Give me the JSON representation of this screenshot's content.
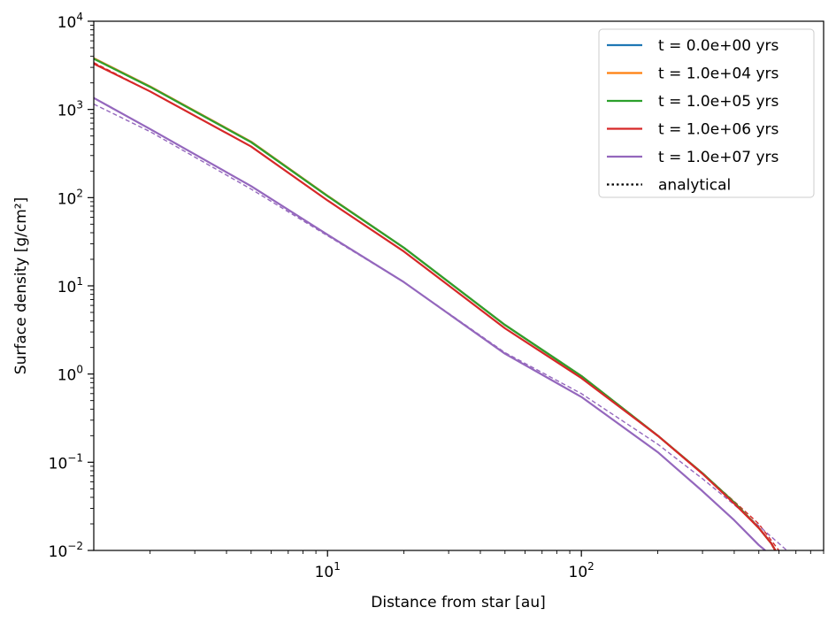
{
  "chart_data": {
    "type": "line",
    "xlabel": "Distance from star [au]",
    "ylabel": "Surface density [g/cm²]",
    "xscale": "log",
    "yscale": "log",
    "xlim": [
      1.2,
      900
    ],
    "ylim": [
      0.01,
      10000
    ],
    "x_ticks": [
      {
        "value": 10,
        "label": "10",
        "exp": "1"
      },
      {
        "value": 100,
        "label": "10",
        "exp": "2"
      }
    ],
    "y_ticks": [
      {
        "value": 0.01,
        "label": "10",
        "exp": "−2"
      },
      {
        "value": 0.1,
        "label": "10",
        "exp": "−1"
      },
      {
        "value": 1,
        "label": "10",
        "exp": "0"
      },
      {
        "value": 10,
        "label": "10",
        "exp": "1"
      },
      {
        "value": 100,
        "label": "10",
        "exp": "2"
      },
      {
        "value": 1000,
        "label": "10",
        "exp": "3"
      },
      {
        "value": 10000,
        "label": "10",
        "exp": "4"
      }
    ],
    "grid": false,
    "legend_position": "top-right",
    "series": [
      {
        "name": "t = 0.0e+00 yrs",
        "color": "#1f77b4",
        "style": "solid",
        "points": [
          [
            1.2,
            3800
          ],
          [
            2,
            1820
          ],
          [
            5,
            430
          ],
          [
            10,
            105
          ],
          [
            20,
            27
          ],
          [
            50,
            3.6
          ],
          [
            100,
            0.95
          ],
          [
            200,
            0.2
          ],
          [
            300,
            0.075
          ],
          [
            400,
            0.035
          ],
          [
            500,
            0.018
          ],
          [
            560,
            0.012
          ],
          [
            600,
            0.0085
          ]
        ]
      },
      {
        "name": "t = 1.0e+04 yrs",
        "color": "#ff7f0e",
        "style": "solid",
        "points": [
          [
            1.2,
            3800
          ],
          [
            2,
            1820
          ],
          [
            5,
            430
          ],
          [
            10,
            105
          ],
          [
            20,
            27
          ],
          [
            50,
            3.6
          ],
          [
            100,
            0.95
          ],
          [
            200,
            0.2
          ],
          [
            300,
            0.075
          ],
          [
            400,
            0.035
          ],
          [
            500,
            0.018
          ],
          [
            560,
            0.012
          ],
          [
            600,
            0.0085
          ]
        ]
      },
      {
        "name": "t = 1.0e+05 yrs",
        "color": "#2ca02c",
        "style": "solid",
        "points": [
          [
            1.2,
            3750
          ],
          [
            2,
            1800
          ],
          [
            5,
            425
          ],
          [
            10,
            104
          ],
          [
            20,
            27
          ],
          [
            50,
            3.6
          ],
          [
            100,
            0.95
          ],
          [
            200,
            0.2
          ],
          [
            300,
            0.075
          ],
          [
            400,
            0.035
          ],
          [
            500,
            0.018
          ],
          [
            560,
            0.012
          ],
          [
            600,
            0.0085
          ]
        ]
      },
      {
        "name": "t = 1.0e+06 yrs",
        "color": "#d62728",
        "style": "solid",
        "points": [
          [
            1.2,
            3300
          ],
          [
            2,
            1600
          ],
          [
            5,
            380
          ],
          [
            10,
            93
          ],
          [
            20,
            24.5
          ],
          [
            50,
            3.3
          ],
          [
            100,
            0.9
          ],
          [
            200,
            0.2
          ],
          [
            300,
            0.074
          ],
          [
            400,
            0.034
          ],
          [
            500,
            0.018
          ],
          [
            560,
            0.012
          ],
          [
            600,
            0.0085
          ]
        ]
      },
      {
        "name": "t = 1.0e+07 yrs",
        "color": "#9467bd",
        "style": "solid",
        "points": [
          [
            1.2,
            1350
          ],
          [
            2,
            600
          ],
          [
            5,
            135
          ],
          [
            10,
            38
          ],
          [
            20,
            11
          ],
          [
            50,
            1.7
          ],
          [
            100,
            0.55
          ],
          [
            200,
            0.13
          ],
          [
            300,
            0.047
          ],
          [
            400,
            0.022
          ],
          [
            500,
            0.0115
          ],
          [
            530,
            0.01
          ]
        ]
      },
      {
        "name": "analytical",
        "color": "#000000",
        "style": "dotted",
        "legend_only": true,
        "points": []
      }
    ],
    "analytical_curves": [
      {
        "color": "#d62728",
        "points": [
          [
            1.2,
            3400
          ],
          [
            2,
            1600
          ],
          [
            5,
            380
          ],
          [
            10,
            93
          ],
          [
            20,
            24.5
          ],
          [
            50,
            3.3
          ],
          [
            100,
            0.9
          ],
          [
            200,
            0.2
          ],
          [
            300,
            0.075
          ],
          [
            400,
            0.036
          ],
          [
            500,
            0.02
          ],
          [
            600,
            0.01
          ]
        ]
      },
      {
        "color": "#9467bd",
        "points": [
          [
            1.2,
            1150
          ],
          [
            2,
            560
          ],
          [
            5,
            125
          ],
          [
            10,
            37
          ],
          [
            20,
            11
          ],
          [
            50,
            1.75
          ],
          [
            100,
            0.6
          ],
          [
            200,
            0.16
          ],
          [
            300,
            0.065
          ],
          [
            400,
            0.033
          ],
          [
            500,
            0.019
          ],
          [
            600,
            0.012
          ],
          [
            650,
            0.0098
          ]
        ]
      }
    ]
  }
}
